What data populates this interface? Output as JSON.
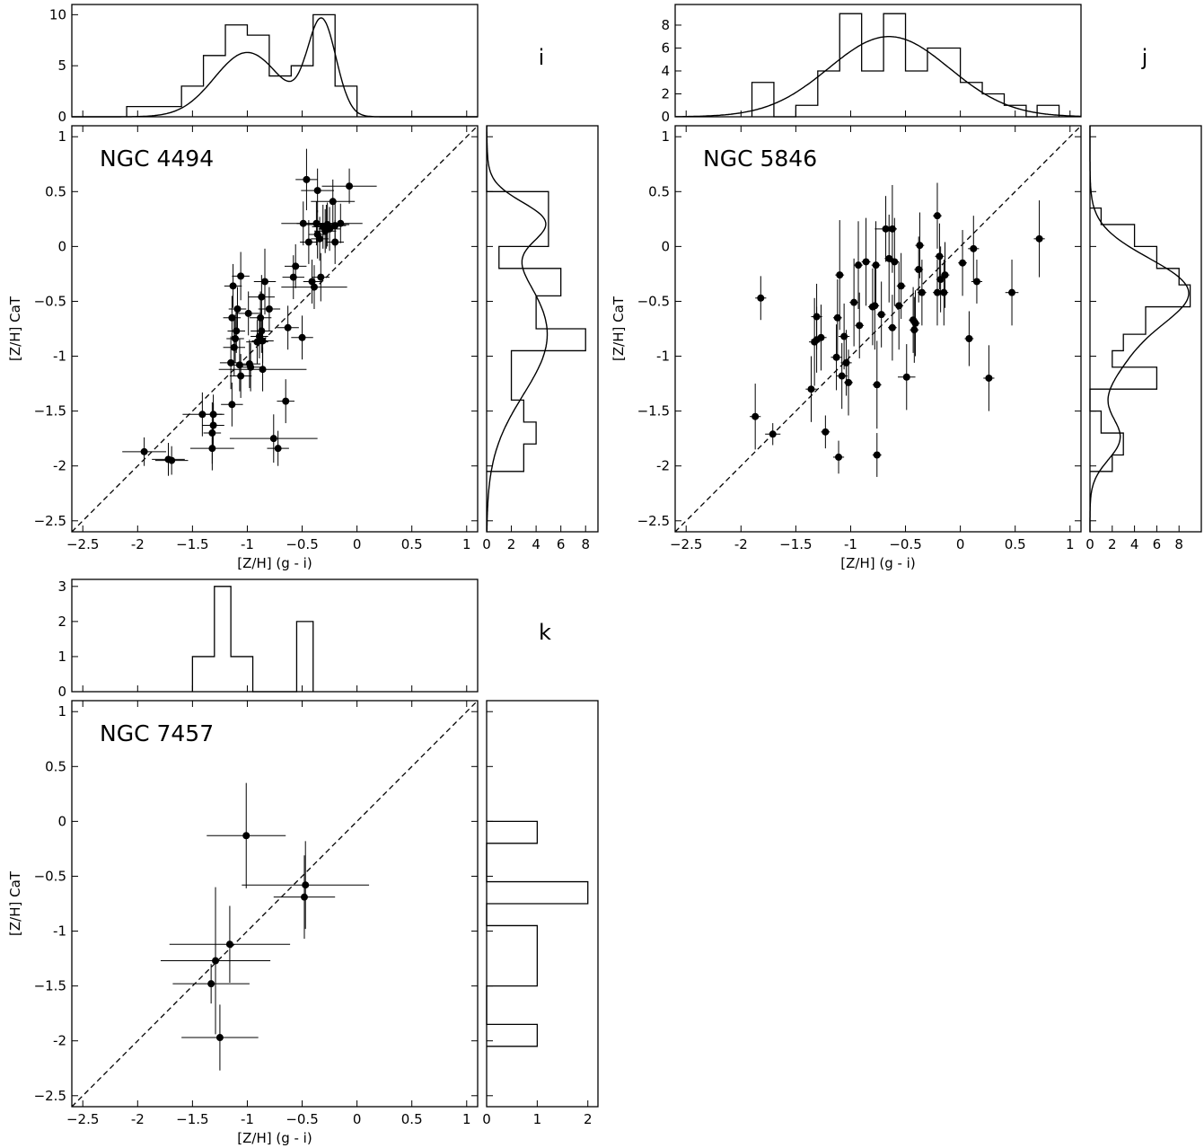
{
  "chart_data": [
    {
      "type": "scatter",
      "panel": "i",
      "galaxy": "NGC 4494",
      "xlabel": "[Z/H] (g - i)",
      "ylabel": "[Z/H] CaT",
      "xlim": [
        -2.6,
        1.1
      ],
      "ylim": [
        -2.6,
        1.1
      ],
      "x_ticks": [
        -2.5,
        -2.0,
        -1.5,
        -1.0,
        -0.5,
        0.0,
        0.5,
        1.0
      ],
      "y_ticks": [
        -2.5,
        -2.0,
        -1.5,
        -1.0,
        -0.5,
        0.0,
        0.5,
        1.0
      ],
      "one_to_one_line": true,
      "points": [
        [
          -1.94,
          -1.87,
          0.2,
          0.13
        ],
        [
          -1.72,
          -1.94,
          0.15,
          0.15
        ],
        [
          -1.69,
          -1.95,
          0.15,
          0.13
        ],
        [
          -1.41,
          -1.53,
          0.18,
          0.2
        ],
        [
          -1.32,
          -1.7,
          0.08,
          0.28
        ],
        [
          -1.32,
          -1.84,
          0.2,
          0.2
        ],
        [
          -1.31,
          -1.53,
          0.1,
          0.18
        ],
        [
          -1.31,
          -1.63,
          0.1,
          0.2
        ],
        [
          -1.15,
          -1.06,
          0.1,
          0.24
        ],
        [
          -1.14,
          -1.44,
          0.1,
          0.2
        ],
        [
          -1.14,
          -0.65,
          0.08,
          0.2
        ],
        [
          -1.13,
          -0.36,
          0.08,
          0.2
        ],
        [
          -1.12,
          -0.92,
          0.1,
          0.26
        ],
        [
          -1.11,
          -0.84,
          0.08,
          0.22
        ],
        [
          -1.1,
          -0.77,
          0.08,
          0.2
        ],
        [
          -1.09,
          -0.57,
          0.08,
          0.2
        ],
        [
          -1.07,
          -1.08,
          0.1,
          0.24
        ],
        [
          -1.06,
          -0.27,
          0.08,
          0.22
        ],
        [
          -1.06,
          -1.18,
          0.1,
          0.2
        ],
        [
          -0.99,
          -0.61,
          0.12,
          0.2
        ],
        [
          -0.98,
          -1.07,
          0.1,
          0.22
        ],
        [
          -0.97,
          -1.1,
          0.1,
          0.22
        ],
        [
          -0.91,
          -0.87,
          0.1,
          0.2
        ],
        [
          -0.89,
          -0.82,
          0.08,
          0.2
        ],
        [
          -0.88,
          -0.65,
          0.1,
          0.24
        ],
        [
          -0.87,
          -0.77,
          0.1,
          0.2
        ],
        [
          -0.87,
          -0.46,
          0.12,
          0.2
        ],
        [
          -0.86,
          -0.86,
          0.1,
          0.2
        ],
        [
          -0.86,
          -1.12,
          0.4,
          0.2
        ],
        [
          -0.84,
          -0.32,
          0.1,
          0.3
        ],
        [
          -0.8,
          -0.57,
          0.1,
          0.2
        ],
        [
          -0.76,
          -1.75,
          0.4,
          0.22
        ],
        [
          -0.72,
          -1.84,
          0.1,
          0.16
        ],
        [
          -0.65,
          -1.41,
          0.08,
          0.2
        ],
        [
          -0.63,
          -0.74,
          0.1,
          0.2
        ],
        [
          -0.58,
          -0.28,
          0.1,
          0.2
        ],
        [
          -0.56,
          -0.18,
          0.1,
          0.2
        ],
        [
          -0.5,
          -0.83,
          0.1,
          0.2
        ],
        [
          -0.49,
          0.21,
          0.2,
          0.2
        ],
        [
          -0.46,
          0.61,
          0.1,
          0.28
        ],
        [
          -0.44,
          0.04,
          0.08,
          0.2
        ],
        [
          -0.41,
          -0.32,
          0.08,
          0.2
        ],
        [
          -0.39,
          -0.37,
          0.3,
          0.2
        ],
        [
          -0.37,
          0.21,
          0.18,
          0.2
        ],
        [
          -0.36,
          0.51,
          0.15,
          0.2
        ],
        [
          -0.36,
          0.11,
          0.08,
          0.22
        ],
        [
          -0.34,
          0.07,
          0.08,
          0.2
        ],
        [
          -0.33,
          -0.28,
          0.08,
          0.22
        ],
        [
          -0.31,
          0.18,
          0.1,
          0.2
        ],
        [
          -0.29,
          0.14,
          0.1,
          0.2
        ],
        [
          -0.28,
          0.18,
          0.1,
          0.2
        ],
        [
          -0.27,
          0.2,
          0.2,
          0.2
        ],
        [
          -0.25,
          0.16,
          0.1,
          0.2
        ],
        [
          -0.22,
          0.41,
          0.2,
          0.2
        ],
        [
          -0.2,
          0.19,
          0.1,
          0.2
        ],
        [
          -0.2,
          0.04,
          0.08,
          0.2
        ],
        [
          -0.15,
          0.21,
          0.2,
          0.18
        ],
        [
          -0.07,
          0.55,
          0.25,
          0.16
        ]
      ],
      "top_hist": {
        "edges": [
          -2.1,
          -1.8,
          -1.6,
          -1.4,
          -1.2,
          -1.0,
          -0.8,
          -0.6,
          -0.4,
          -0.2,
          0.0
        ],
        "counts": [
          1,
          1,
          3,
          6,
          9,
          8,
          4,
          5,
          10,
          3
        ],
        "ylim": [
          0,
          11
        ],
        "yticks": [
          0,
          5,
          10
        ],
        "fit_components": [
          {
            "amp": 6.3,
            "mean": -1.0,
            "sigma": 0.3
          },
          {
            "amp": 9.2,
            "mean": -0.32,
            "sigma": 0.13
          }
        ]
      },
      "side_hist": {
        "edges": [
          -2.05,
          -1.8,
          -1.6,
          -1.4,
          -1.2,
          -0.95,
          -0.75,
          -0.45,
          -0.2,
          0.0,
          0.25,
          0.5,
          0.75
        ],
        "counts": [
          3,
          4,
          3,
          2,
          2,
          8,
          4,
          6,
          1,
          5,
          5,
          0
        ],
        "xlim": [
          0,
          9
        ],
        "xticks": [
          0,
          2,
          4,
          6,
          8
        ],
        "fit_components": [
          {
            "amp": 4.9,
            "mean": -0.8,
            "sigma": 0.55
          },
          {
            "amp": 3.9,
            "mean": 0.23,
            "sigma": 0.18
          }
        ]
      }
    },
    {
      "type": "scatter",
      "panel": "j",
      "galaxy": "NGC 5846",
      "xlabel": "[Z/H] (g - i)",
      "ylabel": "[Z/H] CaT",
      "xlim": [
        -2.6,
        1.1
      ],
      "ylim": [
        -2.6,
        1.1
      ],
      "x_ticks": [
        -2.5,
        -2.0,
        -1.5,
        -1.0,
        -0.5,
        0.0,
        0.5,
        1.0
      ],
      "y_ticks": [
        -2.5,
        -2.0,
        -1.5,
        -1.0,
        -0.5,
        0.0,
        0.5,
        1.0
      ],
      "one_to_one_line": true,
      "points": [
        [
          -1.87,
          -1.55,
          0.05,
          0.3
        ],
        [
          -1.82,
          -0.47,
          0.05,
          0.2
        ],
        [
          -1.71,
          -1.71,
          0.07,
          0.1
        ],
        [
          -1.36,
          -1.3,
          0.05,
          0.3
        ],
        [
          -1.33,
          -0.87,
          0.05,
          0.4
        ],
        [
          -1.31,
          -0.64,
          0.05,
          0.3
        ],
        [
          -1.31,
          -0.85,
          0.05,
          0.3
        ],
        [
          -1.27,
          -0.83,
          0.05,
          0.3
        ],
        [
          -1.23,
          -1.69,
          0.04,
          0.15
        ],
        [
          -1.13,
          -1.01,
          0.05,
          0.3
        ],
        [
          -1.12,
          -0.65,
          0.04,
          0.35
        ],
        [
          -1.11,
          -1.92,
          0.05,
          0.15
        ],
        [
          -1.1,
          -0.26,
          0.04,
          0.5
        ],
        [
          -1.08,
          -1.18,
          0.05,
          0.3
        ],
        [
          -1.06,
          -0.82,
          0.05,
          0.3
        ],
        [
          -1.04,
          -1.06,
          0.05,
          0.3
        ],
        [
          -1.02,
          -1.24,
          0.04,
          0.3
        ],
        [
          -0.97,
          -0.51,
          0.04,
          0.4
        ],
        [
          -0.93,
          -0.17,
          0.04,
          0.4
        ],
        [
          -0.92,
          -0.72,
          0.04,
          0.3
        ],
        [
          -0.86,
          -0.14,
          0.04,
          0.4
        ],
        [
          -0.8,
          -0.55,
          0.04,
          0.35
        ],
        [
          -0.78,
          -0.54,
          0.04,
          0.4
        ],
        [
          -0.77,
          -0.17,
          0.04,
          0.4
        ],
        [
          -0.76,
          -1.26,
          0.04,
          0.4
        ],
        [
          -0.76,
          -1.9,
          0.04,
          0.2
        ],
        [
          -0.72,
          -0.62,
          0.04,
          0.3
        ],
        [
          -0.68,
          0.16,
          0.1,
          0.3
        ],
        [
          -0.65,
          -0.11,
          0.04,
          0.4
        ],
        [
          -0.62,
          -0.74,
          0.04,
          0.3
        ],
        [
          -0.62,
          0.16,
          0.04,
          0.4
        ],
        [
          -0.6,
          -0.14,
          0.04,
          0.4
        ],
        [
          -0.56,
          -0.54,
          0.04,
          0.4
        ],
        [
          -0.54,
          -0.36,
          0.04,
          0.3
        ],
        [
          -0.49,
          -1.19,
          0.08,
          0.3
        ],
        [
          -0.43,
          -0.67,
          0.04,
          0.3
        ],
        [
          -0.42,
          -0.76,
          0.04,
          0.3
        ],
        [
          -0.41,
          -0.7,
          0.04,
          0.3
        ],
        [
          -0.38,
          -0.21,
          0.04,
          0.3
        ],
        [
          -0.37,
          0.01,
          0.04,
          0.3
        ],
        [
          -0.35,
          -0.42,
          0.04,
          0.3
        ],
        [
          -0.21,
          0.28,
          0.04,
          0.3
        ],
        [
          -0.21,
          -0.42,
          0.04,
          0.3
        ],
        [
          -0.19,
          -0.09,
          0.04,
          0.3
        ],
        [
          -0.18,
          -0.3,
          0.04,
          0.3
        ],
        [
          -0.15,
          -0.42,
          0.04,
          0.3
        ],
        [
          -0.14,
          -0.26,
          0.04,
          0.3
        ],
        [
          0.02,
          -0.15,
          0.04,
          0.3
        ],
        [
          0.08,
          -0.84,
          0.04,
          0.25
        ],
        [
          0.12,
          -0.02,
          0.05,
          0.3
        ],
        [
          0.15,
          -0.32,
          0.05,
          0.2
        ],
        [
          0.26,
          -1.2,
          0.05,
          0.3
        ],
        [
          0.47,
          -0.42,
          0.06,
          0.3
        ],
        [
          0.72,
          0.07,
          0.05,
          0.35
        ]
      ],
      "top_hist": {
        "edges": [
          -1.9,
          -1.7,
          -1.5,
          -1.3,
          -1.1,
          -0.9,
          -0.7,
          -0.5,
          -0.3,
          0.0,
          0.2,
          0.4,
          0.6,
          0.7,
          0.9
        ],
        "counts": [
          3,
          0,
          1,
          4,
          9,
          4,
          9,
          4,
          6,
          3,
          2,
          1,
          0,
          1
        ],
        "ylim": [
          0,
          9.8
        ],
        "yticks": [
          0,
          2,
          4,
          6,
          8
        ],
        "fit_components": [
          {
            "amp": 7.0,
            "mean": -0.65,
            "sigma": 0.55
          }
        ]
      },
      "side_hist": {
        "edges": [
          -2.05,
          -1.9,
          -1.7,
          -1.5,
          -1.3,
          -1.1,
          -0.95,
          -0.8,
          -0.55,
          -0.35,
          -0.2,
          0.0,
          0.2,
          0.35
        ],
        "counts": [
          2,
          3,
          1,
          0,
          6,
          2,
          3,
          5,
          9,
          8,
          6,
          4,
          1
        ],
        "xlim": [
          0,
          10
        ],
        "xticks": [
          0,
          2,
          4,
          6,
          8
        ],
        "fit_components": [
          {
            "amp": 8.5,
            "mean": -0.4,
            "sigma": 0.3
          },
          {
            "amp": 2.5,
            "mean": -1.0,
            "sigma": 0.3
          },
          {
            "amp": 2.6,
            "mean": -1.75,
            "sigma": 0.2
          }
        ]
      }
    },
    {
      "type": "scatter",
      "panel": "k",
      "galaxy": "NGC 7457",
      "xlabel": "[Z/H] (g - i)",
      "ylabel": "[Z/H] CaT",
      "xlim": [
        -2.6,
        1.1
      ],
      "ylim": [
        -2.6,
        1.1
      ],
      "x_ticks": [
        -2.5,
        -2.0,
        -1.5,
        -1.0,
        -0.5,
        0.0,
        0.5,
        1.0
      ],
      "y_ticks": [
        -2.5,
        -2.0,
        -1.5,
        -1.0,
        -0.5,
        0.0,
        0.5,
        1.0
      ],
      "one_to_one_line": true,
      "points": [
        [
          -1.01,
          -0.13,
          0.36,
          0.48
        ],
        [
          -0.47,
          -0.58,
          0.58,
          0.4
        ],
        [
          -0.48,
          -0.69,
          0.28,
          0.38
        ],
        [
          -1.16,
          -1.12,
          0.55,
          0.35
        ],
        [
          -1.29,
          -1.27,
          0.5,
          0.67
        ],
        [
          -1.33,
          -1.48,
          0.35,
          0.18
        ],
        [
          -1.25,
          -1.97,
          0.35,
          0.3
        ]
      ],
      "top_hist": {
        "edges": [
          -1.5,
          -1.3,
          -1.15,
          -0.95,
          -0.55,
          -0.4
        ],
        "counts": [
          1,
          3,
          1,
          0,
          2
        ],
        "ylim": [
          0,
          3.2
        ],
        "yticks": [
          0,
          1,
          2,
          3
        ]
      },
      "side_hist": {
        "edges": [
          -2.05,
          -1.85,
          -1.5,
          -0.95,
          -0.75,
          -0.55,
          -0.2,
          0.0
        ],
        "counts": [
          1,
          0,
          1,
          0,
          2,
          0,
          1
        ],
        "xlim": [
          0,
          2.2
        ],
        "xticks": [
          0,
          1,
          2
        ]
      }
    }
  ]
}
